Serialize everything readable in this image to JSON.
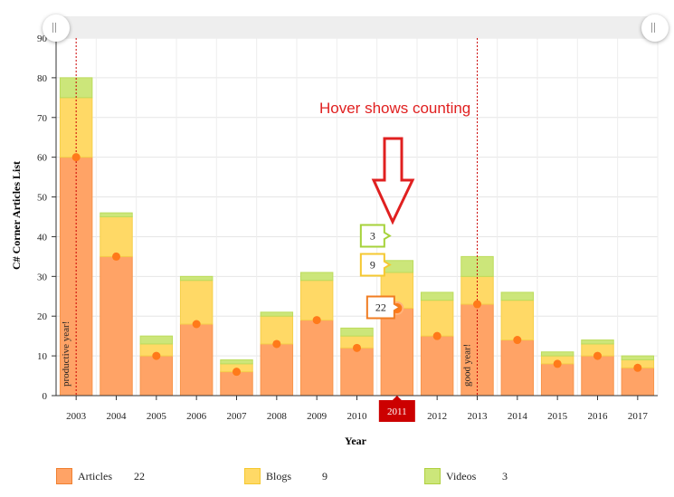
{
  "chart_data": {
    "type": "bar",
    "stacked": true,
    "categories": [
      "2003",
      "2004",
      "2005",
      "2006",
      "2007",
      "2008",
      "2009",
      "2010",
      "2011",
      "2012",
      "2013",
      "2014",
      "2015",
      "2016",
      "2017"
    ],
    "series": [
      {
        "name": "Articles",
        "color": "#ffa366",
        "values": [
          60,
          35,
          10,
          18,
          6,
          13,
          19,
          12,
          22,
          15,
          23,
          14,
          8,
          10,
          7
        ]
      },
      {
        "name": "Blogs",
        "color": "#ffd966",
        "values": [
          15,
          10,
          3,
          11,
          2,
          7,
          10,
          3,
          9,
          9,
          7,
          10,
          2,
          3,
          2
        ]
      },
      {
        "name": "Videos",
        "color": "#cce67a",
        "values": [
          5,
          1,
          2,
          1,
          1,
          1,
          2,
          2,
          3,
          2,
          5,
          2,
          1,
          1,
          1
        ]
      }
    ],
    "xlabel": "Year",
    "ylabel": "C# Corner Articles List",
    "ylim": [
      0,
      90
    ],
    "yticks": [
      0,
      10,
      20,
      30,
      40,
      50,
      60,
      70,
      80,
      90
    ],
    "grid": true,
    "highlight_category": "2011",
    "guides": [
      {
        "category": "2003",
        "label": "productive year!"
      },
      {
        "category": "2013",
        "label": "good year!"
      }
    ],
    "legend_position": "bottom",
    "legend_values": [
      "22",
      "9",
      "3"
    ],
    "annotation": "Hover shows counting",
    "tooltips": [
      "3",
      "9",
      "22"
    ]
  }
}
